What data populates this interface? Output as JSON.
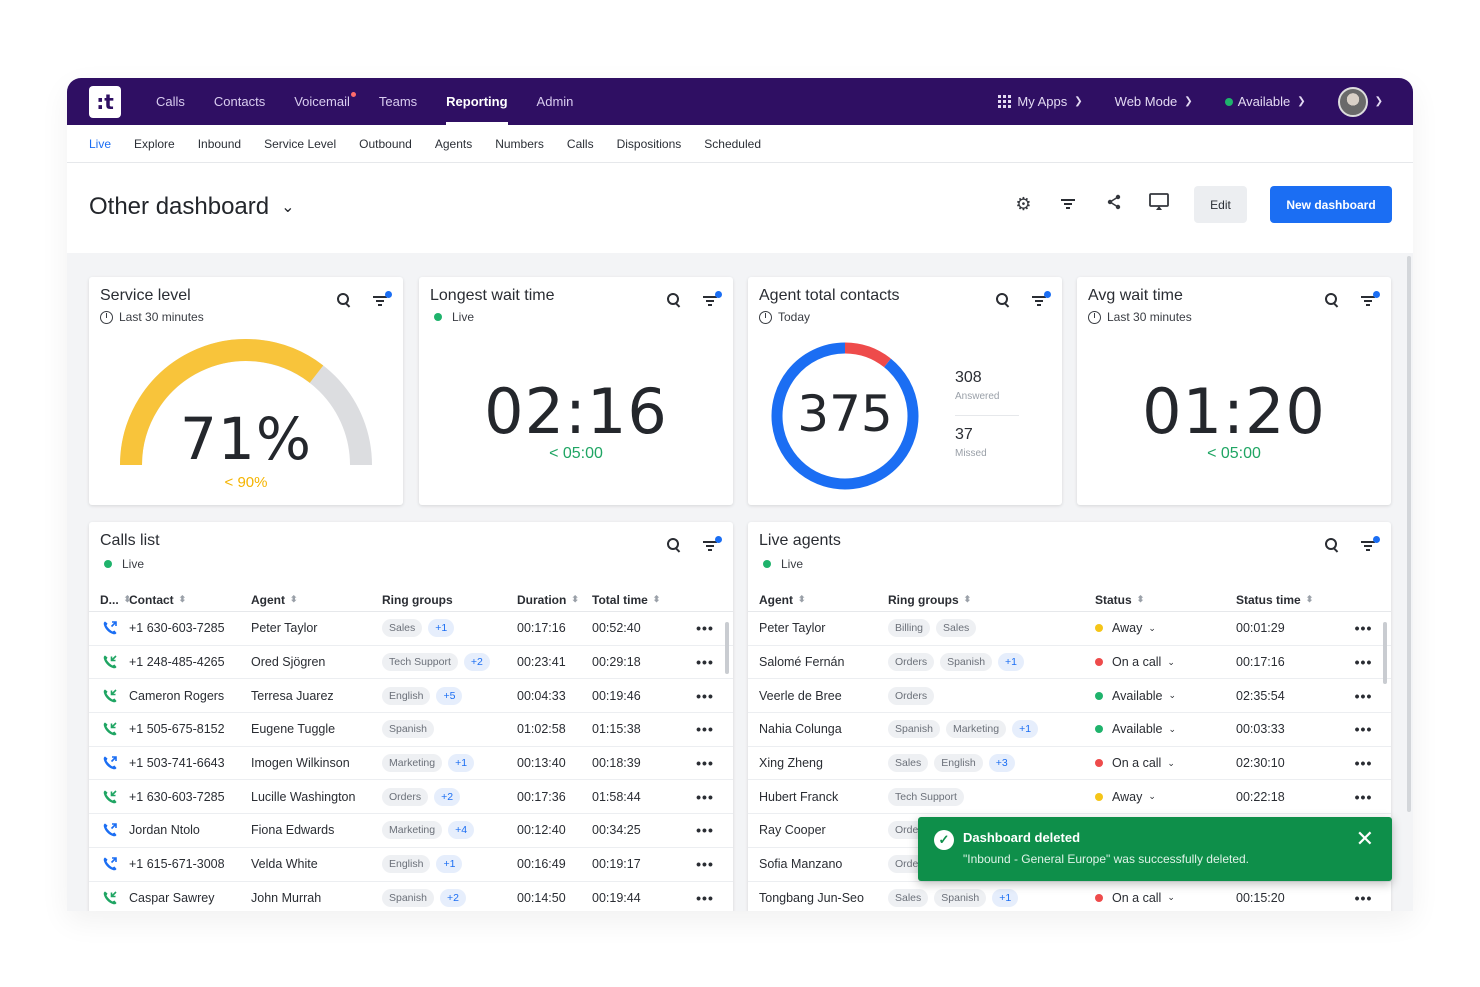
{
  "nav": {
    "items": [
      "Calls",
      "Contacts",
      "Voicemail",
      "Teams",
      "Reporting",
      "Admin"
    ],
    "active": "Reporting",
    "my_apps": "My Apps",
    "web_mode": "Web Mode",
    "status": "Available"
  },
  "subnav": [
    "Live",
    "Explore",
    "Inbound",
    "Service Level",
    "Outbound",
    "Agents",
    "Numbers",
    "Calls",
    "Dispositions",
    "Scheduled"
  ],
  "header": {
    "title": "Other dashboard",
    "edit": "Edit",
    "new": "New dashboard"
  },
  "widgets": {
    "service_level": {
      "title": "Service level",
      "period": "Last 30 minutes",
      "value": "71%",
      "target": "< 90%",
      "fraction": 0.71
    },
    "longest_wait": {
      "title": "Longest wait time",
      "period": "Live",
      "value": "02:16",
      "target": "< 05:00"
    },
    "agent_contacts": {
      "title": "Agent total contacts",
      "period": "Today",
      "total": "375",
      "answered": "308",
      "answered_label": "Answered",
      "missed": "37",
      "missed_label": "Missed"
    },
    "avg_wait": {
      "title": "Avg wait time",
      "period": "Last 30 minutes",
      "value": "01:20",
      "target": "< 05:00"
    }
  },
  "calls_list": {
    "title": "Calls list",
    "period": "Live",
    "headers": [
      "D...",
      "Contact",
      "Agent",
      "Ring groups",
      "Duration",
      "Total time"
    ],
    "rows": [
      {
        "dir": "out",
        "contact": "+1 630-603-7285",
        "agent": "Peter Taylor",
        "groups": [
          "Sales"
        ],
        "more": "+1",
        "duration": "00:17:16",
        "total": "00:52:40"
      },
      {
        "dir": "in",
        "contact": "+1 248-485-4265",
        "agent": "Ored Sjögren",
        "groups": [
          "Tech Support"
        ],
        "more": "+2",
        "duration": "00:23:41",
        "total": "00:29:18"
      },
      {
        "dir": "in",
        "contact": "Cameron Rogers",
        "agent": "Terresa Juarez",
        "groups": [
          "English"
        ],
        "more": "+5",
        "duration": "00:04:33",
        "total": "00:19:46"
      },
      {
        "dir": "in",
        "contact": "+1 505-675-8152",
        "agent": "Eugene Tuggle",
        "groups": [
          "Spanish"
        ],
        "more": "",
        "duration": "01:02:58",
        "total": "01:15:38"
      },
      {
        "dir": "out",
        "contact": "+1 503-741-6643",
        "agent": "Imogen Wilkinson",
        "groups": [
          "Marketing"
        ],
        "more": "+1",
        "duration": "00:13:40",
        "total": "00:18:39"
      },
      {
        "dir": "in",
        "contact": "+1 630-603-7285",
        "agent": "Lucille Washington",
        "groups": [
          "Orders"
        ],
        "more": "+2",
        "duration": "00:17:36",
        "total": "01:58:44"
      },
      {
        "dir": "out",
        "contact": "Jordan Ntolo",
        "agent": "Fiona Edwards",
        "groups": [
          "Marketing"
        ],
        "more": "+4",
        "duration": "00:12:40",
        "total": "00:34:25"
      },
      {
        "dir": "out",
        "contact": "+1 615-671-3008",
        "agent": "Velda White",
        "groups": [
          "English"
        ],
        "more": "+1",
        "duration": "00:16:49",
        "total": "00:19:17"
      },
      {
        "dir": "in",
        "contact": "Caspar Sawrey",
        "agent": "John Murrah",
        "groups": [
          "Spanish"
        ],
        "more": "+2",
        "duration": "00:14:50",
        "total": "00:19:44"
      }
    ]
  },
  "live_agents": {
    "title": "Live agents",
    "period": "Live",
    "headers": [
      "Agent",
      "Ring groups",
      "Status",
      "Status time"
    ],
    "rows": [
      {
        "agent": "Peter Taylor",
        "groups": [
          "Billing",
          "Sales"
        ],
        "more": "",
        "status": "Away",
        "color": "#f5c518",
        "time": "00:01:29"
      },
      {
        "agent": "Salomé Fernán",
        "groups": [
          "Orders",
          "Spanish"
        ],
        "more": "+1",
        "status": "On a call",
        "color": "#ee4b4b",
        "time": "00:17:16"
      },
      {
        "agent": "Veerle de Bree",
        "groups": [
          "Orders"
        ],
        "more": "",
        "status": "Available",
        "color": "#1fb36c",
        "time": "02:35:54"
      },
      {
        "agent": "Nahia Colunga",
        "groups": [
          "Spanish",
          "Marketing"
        ],
        "more": "+1",
        "status": "Available",
        "color": "#1fb36c",
        "time": "00:03:33"
      },
      {
        "agent": "Xing Zheng",
        "groups": [
          "Sales",
          "English"
        ],
        "more": "+3",
        "status": "On a call",
        "color": "#ee4b4b",
        "time": "02:30:10"
      },
      {
        "agent": "Hubert Franck",
        "groups": [
          "Tech Support"
        ],
        "more": "",
        "status": "Away",
        "color": "#f5c518",
        "time": "00:22:18"
      },
      {
        "agent": "Ray Cooper",
        "groups": [
          "Orde"
        ],
        "more": "",
        "status": "",
        "color": "",
        "time": ""
      },
      {
        "agent": "Sofia Manzano",
        "groups": [
          "Orde"
        ],
        "more": "",
        "status": "",
        "color": "",
        "time": ""
      },
      {
        "agent": "Tongbang Jun-Seo",
        "groups": [
          "Sales",
          "Spanish"
        ],
        "more": "+1",
        "status": "On a call",
        "color": "#ee4b4b",
        "time": "00:15:20"
      }
    ]
  },
  "toast": {
    "title": "Dashboard deleted",
    "message": "\"Inbound - General Europe\" was successfully deleted."
  }
}
